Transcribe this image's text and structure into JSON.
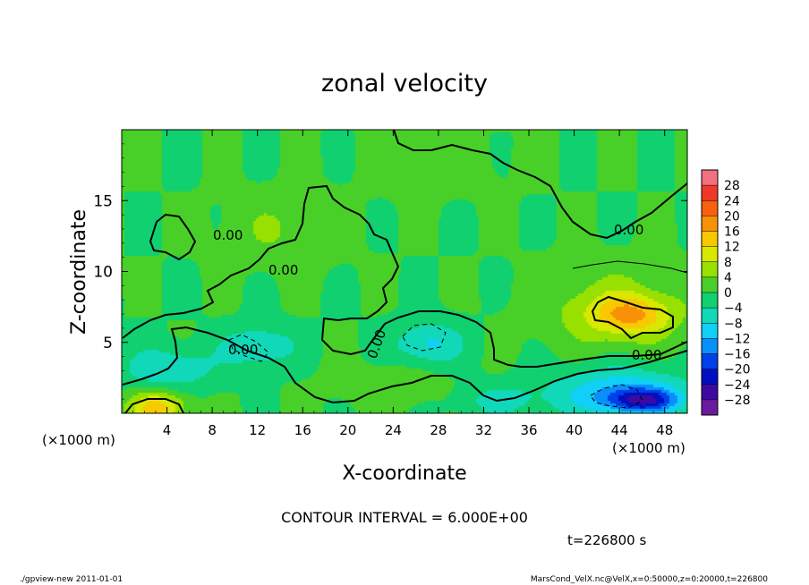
{
  "chart_data": {
    "type": "heatmap",
    "title": "zonal velocity",
    "xlabel": "X-coordinate",
    "ylabel": "Z-coordinate",
    "x_unit": "(×1000 m)",
    "y_unit": "(×1000 m)",
    "xlim": [
      0,
      50
    ],
    "ylim": [
      0,
      20
    ],
    "x_ticks": [
      "4",
      "8",
      "12",
      "16",
      "20",
      "24",
      "28",
      "32",
      "36",
      "40",
      "44",
      "48"
    ],
    "x_tick_values": [
      4,
      8,
      12,
      16,
      20,
      24,
      28,
      32,
      36,
      40,
      44,
      48
    ],
    "y_ticks": [
      "5",
      "10",
      "15"
    ],
    "y_tick_values": [
      5,
      10,
      15
    ],
    "colorbar_labels": [
      "28",
      "24",
      "20",
      "16",
      "12",
      "8",
      "4",
      "0",
      "−4",
      "−8",
      "−12",
      "−16",
      "−20",
      "−24",
      "−28"
    ],
    "colorbar_colors": [
      "#f07080",
      "#f03828",
      "#f86010",
      "#f89008",
      "#f8c800",
      "#d8e800",
      "#98e000",
      "#48d028",
      "#10d070",
      "#10d8b8",
      "#10d0f8",
      "#0890f8",
      "#0040e8",
      "#0010c0",
      "#3c0aa0",
      "#6a1a9e"
    ],
    "contour_interval": "CONTOUR INTERVAL = 6.000E+00",
    "contour_labels": [
      "0.00",
      "0.00",
      "0.00",
      "0.00",
      "0.00",
      "0.00"
    ],
    "time_label": "t=226800 s",
    "grid": false,
    "legend": "right",
    "blobs": [
      {
        "x": 25,
        "z": 10,
        "rx": 14,
        "rz": 6,
        "v": 0
      },
      {
        "x": 45,
        "z": 7,
        "rx": 3.5,
        "rz": 1.4,
        "v": 13
      },
      {
        "x": 43,
        "z": 7.5,
        "rx": 6,
        "rz": 2.8,
        "v": 6
      },
      {
        "x": 44,
        "z": 1.5,
        "rx": 6,
        "rz": 1.8,
        "v": -12
      },
      {
        "x": 46,
        "z": 1,
        "rx": 3,
        "rz": 0.8,
        "v": -17
      },
      {
        "x": 3,
        "z": 0.5,
        "rx": 2.5,
        "rz": 1.2,
        "v": 14
      },
      {
        "x": 12,
        "z": 4.8,
        "rx": 3,
        "rz": 1.3,
        "v": -9
      },
      {
        "x": 27,
        "z": 5,
        "rx": 3,
        "rz": 1.5,
        "v": -9
      },
      {
        "x": 4,
        "z": 3.2,
        "rx": 4,
        "rz": 1.5,
        "v": -8
      },
      {
        "x": 24,
        "z": 2,
        "rx": 5,
        "rz": 1.5,
        "v": 3
      },
      {
        "x": 33,
        "z": 1,
        "rx": 4,
        "rz": 1.2,
        "v": -5
      },
      {
        "x": 14,
        "z": 13,
        "rx": 5,
        "rz": 2.5,
        "v": 4
      },
      {
        "x": 28,
        "z": 17.5,
        "rx": 6,
        "rz": 2,
        "v": 2
      }
    ]
  },
  "footer": {
    "left": "./gpview-new  2011-01-01",
    "right": "MarsCond_VelX.nc@VelX,x=0:50000,z=0:20000,t=226800"
  }
}
